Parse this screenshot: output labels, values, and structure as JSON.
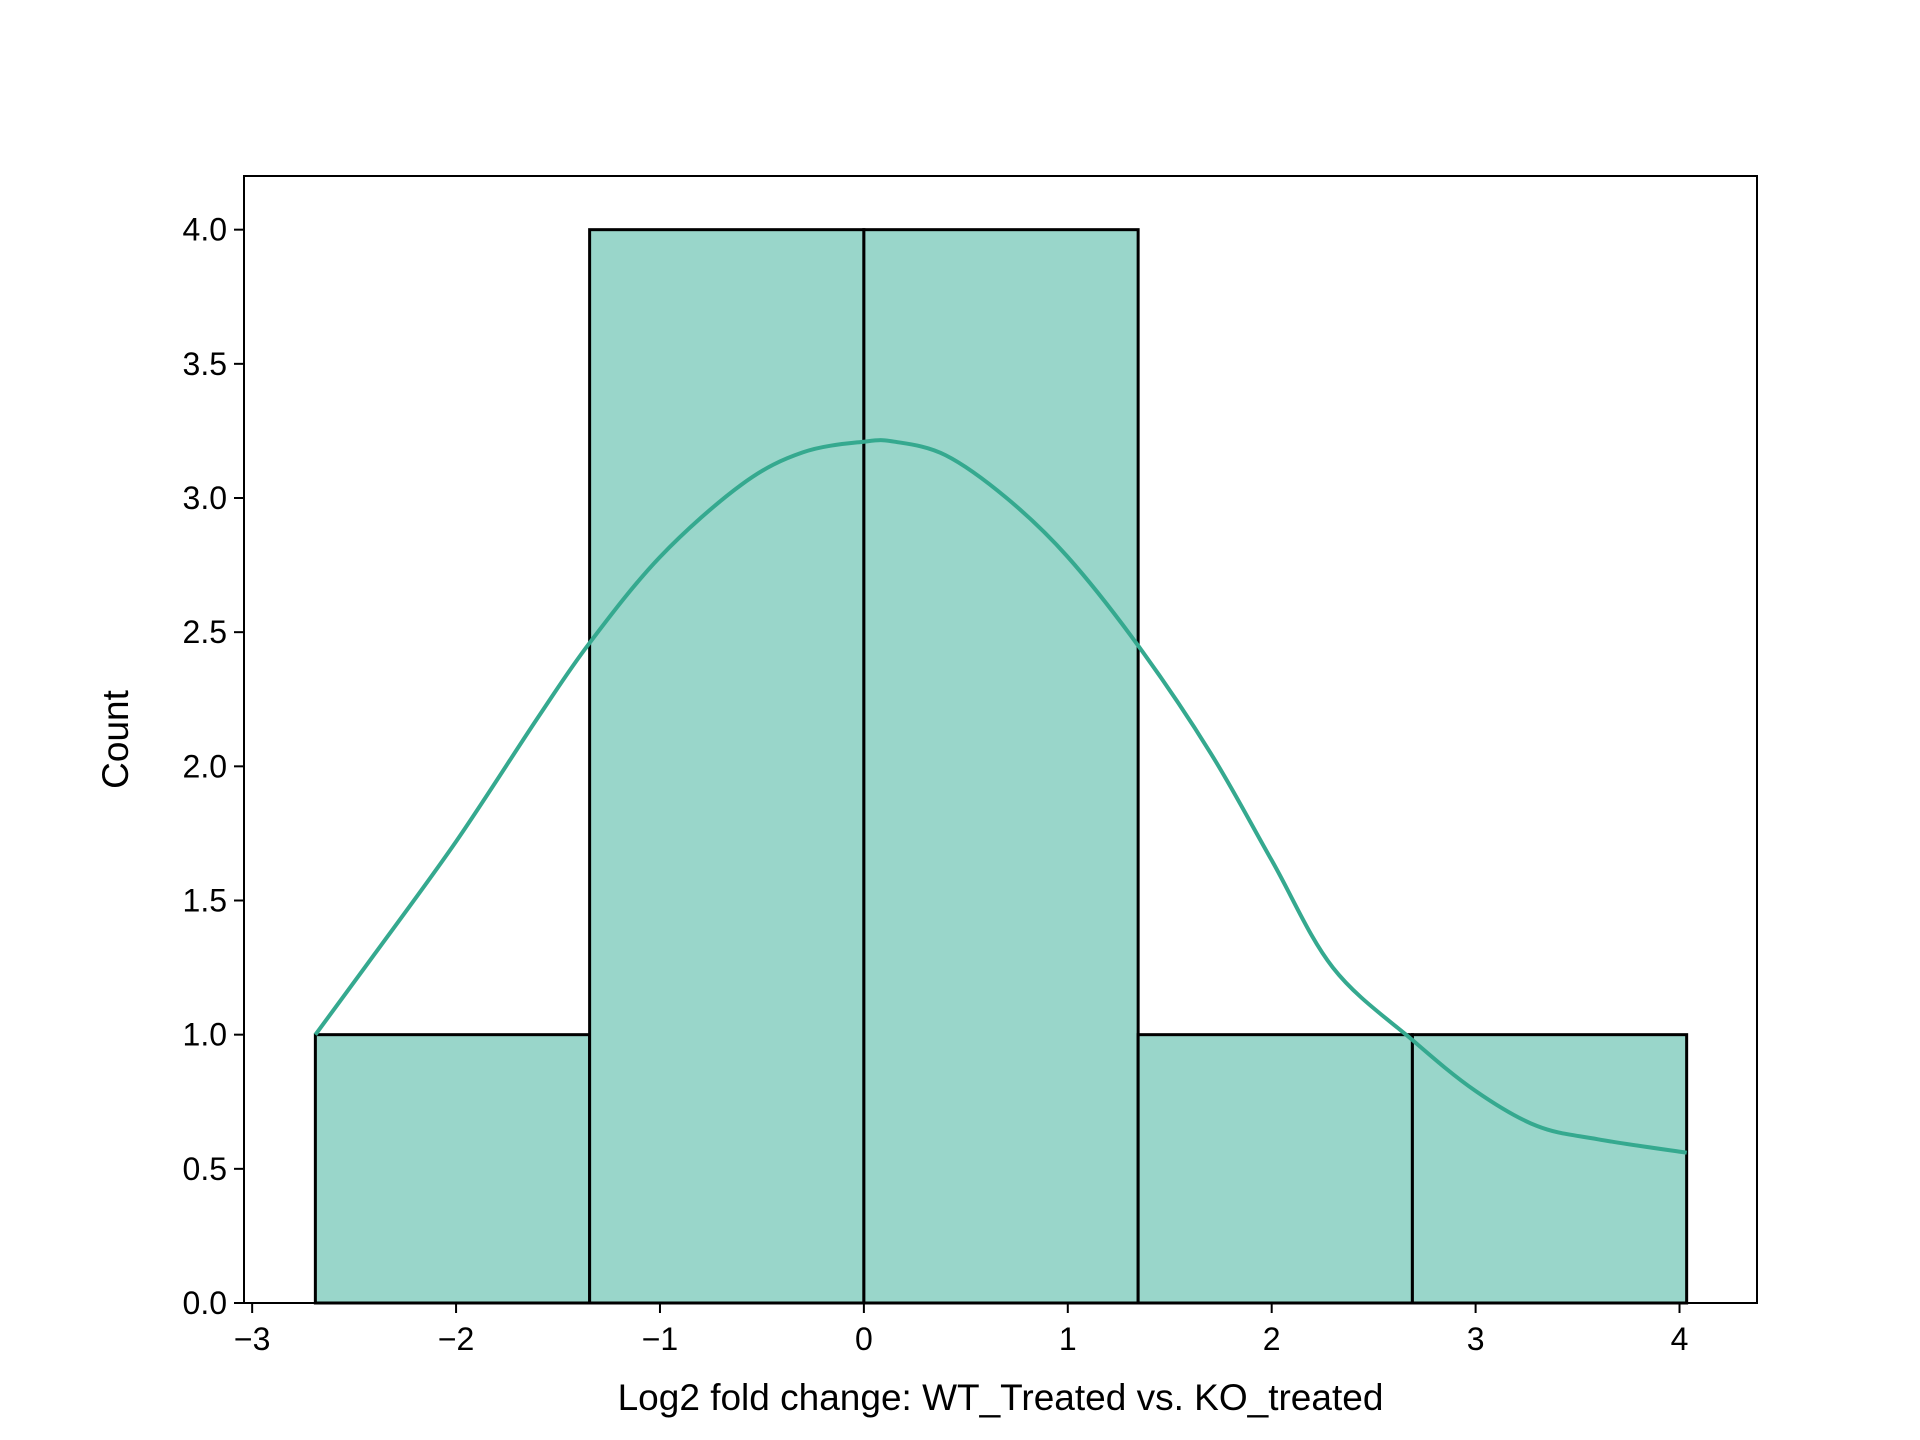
{
  "chart_data": {
    "type": "bar",
    "subtype": "histogram-with-kde",
    "title": "",
    "xlabel": "Log2 fold change: WT_Treated vs. KO_treated",
    "ylabel": "Count",
    "xlim": [
      -3.04,
      4.38
    ],
    "ylim": [
      0,
      4.2
    ],
    "xticks": [
      -3,
      -2,
      -1,
      0,
      1,
      2,
      3,
      4
    ],
    "xtick_labels": [
      "−3",
      "−2",
      "−1",
      "0",
      "1",
      "2",
      "3",
      "4"
    ],
    "yticks": [
      0,
      0.5,
      1,
      1.5,
      2,
      2.5,
      3,
      3.5,
      4
    ],
    "ytick_labels": [
      "0.0",
      "0.5",
      "1.0",
      "1.5",
      "2.0",
      "2.5",
      "3.0",
      "3.5",
      "4.0"
    ],
    "bins": [
      {
        "x0": -2.69,
        "x1": -1.345,
        "count": 1
      },
      {
        "x0": -1.345,
        "x1": 0.0,
        "count": 4
      },
      {
        "x0": 0.0,
        "x1": 1.345,
        "count": 4
      },
      {
        "x0": 1.345,
        "x1": 2.69,
        "count": 1
      },
      {
        "x0": 2.69,
        "x1": 4.035,
        "count": 1
      }
    ],
    "kde": {
      "x": [
        -2.69,
        -2.4,
        -2.0,
        -1.6,
        -1.345,
        -1.0,
        -0.6,
        -0.3,
        0.0,
        0.15,
        0.4,
        0.7,
        1.0,
        1.345,
        1.7,
        2.0,
        2.3,
        2.69,
        3.0,
        3.3,
        3.6,
        4.035
      ],
      "y": [
        1.0,
        1.3,
        1.72,
        2.18,
        2.46,
        2.78,
        3.05,
        3.17,
        3.21,
        3.21,
        3.16,
        3.0,
        2.78,
        2.45,
        2.05,
        1.65,
        1.25,
        0.98,
        0.79,
        0.66,
        0.61,
        0.56
      ]
    },
    "grid": false,
    "legend": "none",
    "colors": {
      "bar_fill": "#99d6ca",
      "bar_edge": "#000000",
      "kde_line": "#35a98f"
    }
  }
}
